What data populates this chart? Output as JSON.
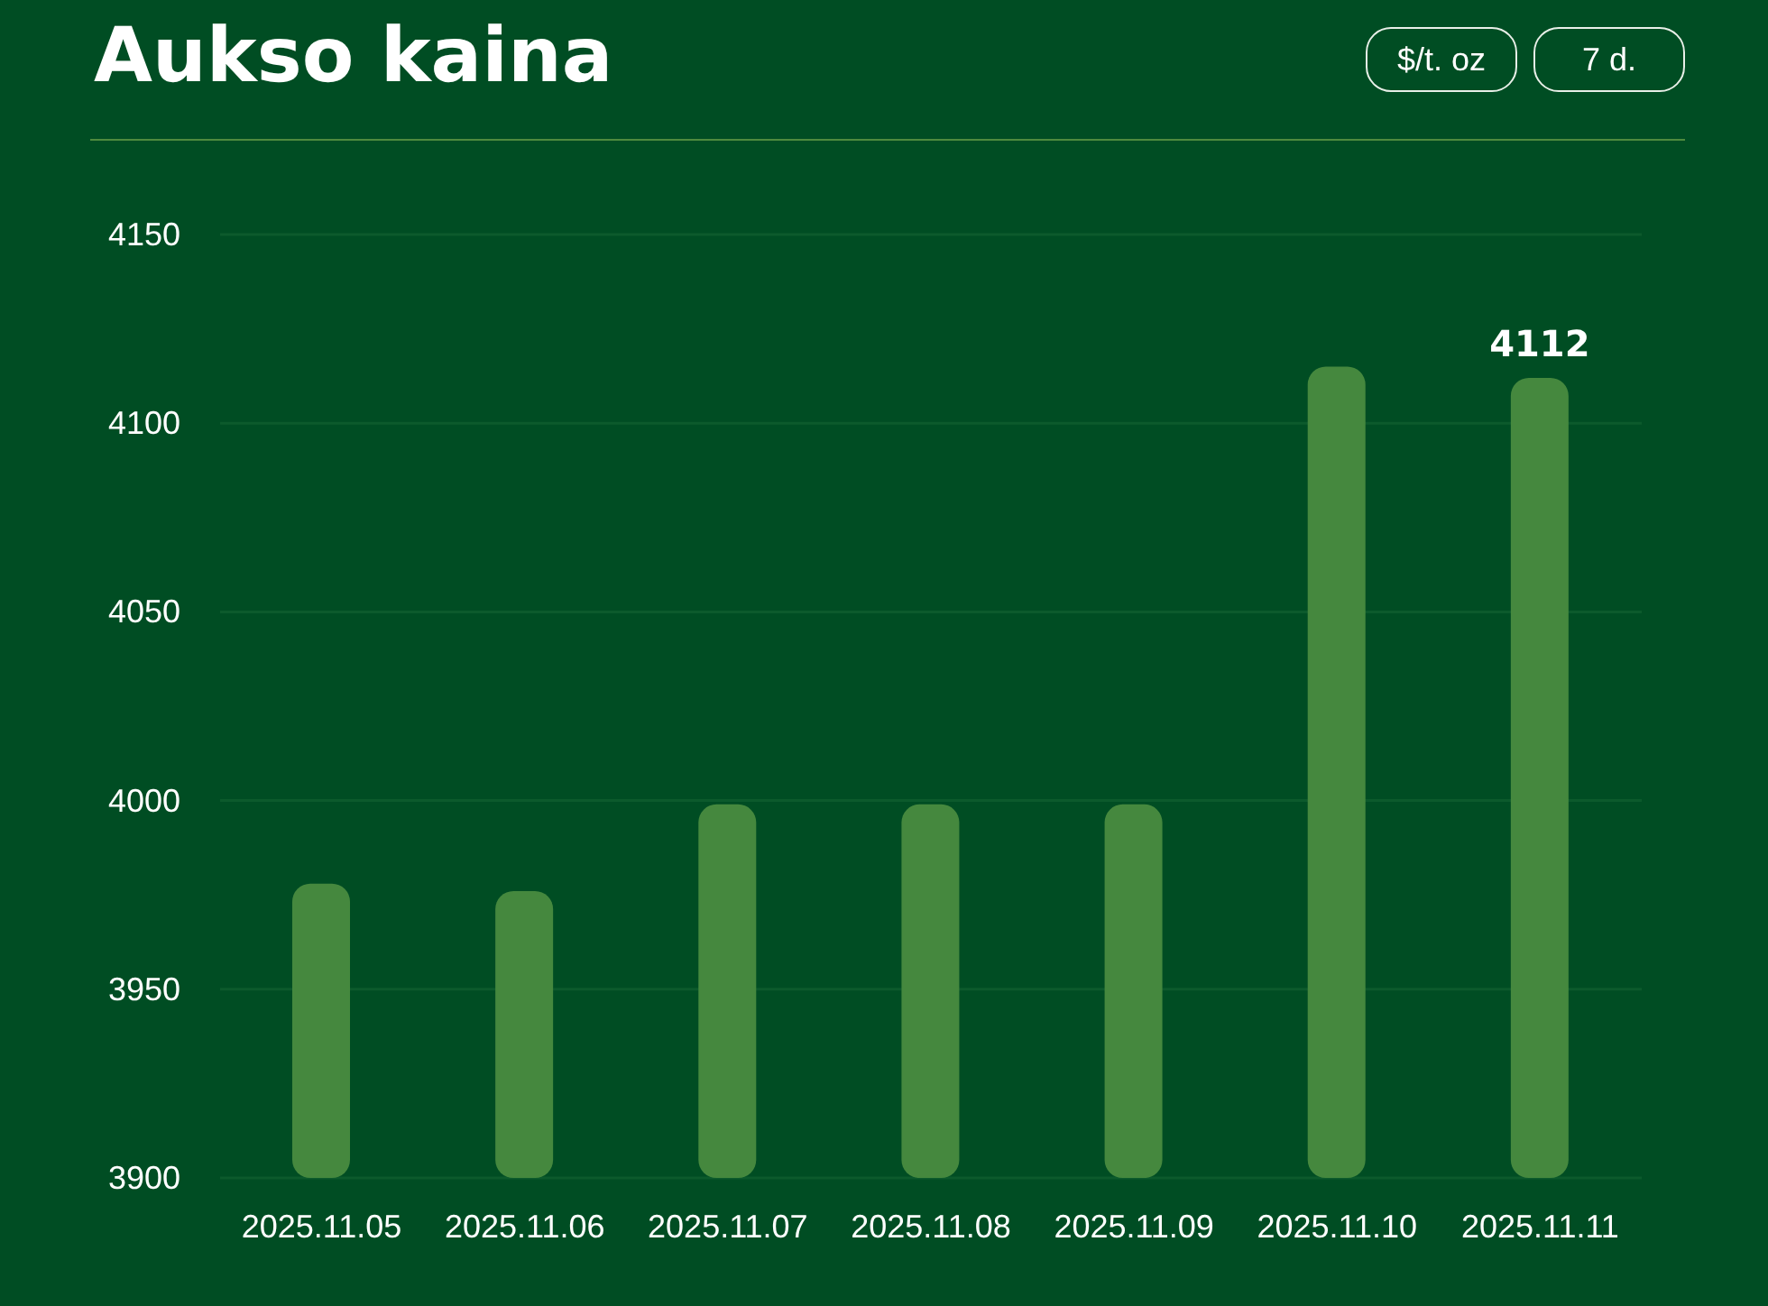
{
  "chart_data": {
    "type": "bar",
    "title": "Aukso kaina",
    "annotations": [
      "$/t. oz",
      "7 d."
    ],
    "categories": [
      "2025.11.05",
      "2025.11.06",
      "2025.11.07",
      "2025.11.08",
      "2025.11.09",
      "2025.11.10",
      "2025.11.11"
    ],
    "values": [
      3978,
      3976,
      3999,
      3999,
      3999,
      4115,
      4112
    ],
    "value_labels": [
      null,
      null,
      null,
      null,
      null,
      null,
      "4112"
    ],
    "color": "#45883e",
    "ylim": [
      3900,
      4150
    ],
    "yticks": [
      3900,
      3950,
      4000,
      4050,
      4100,
      4150
    ],
    "grid": "y",
    "legend": false
  }
}
